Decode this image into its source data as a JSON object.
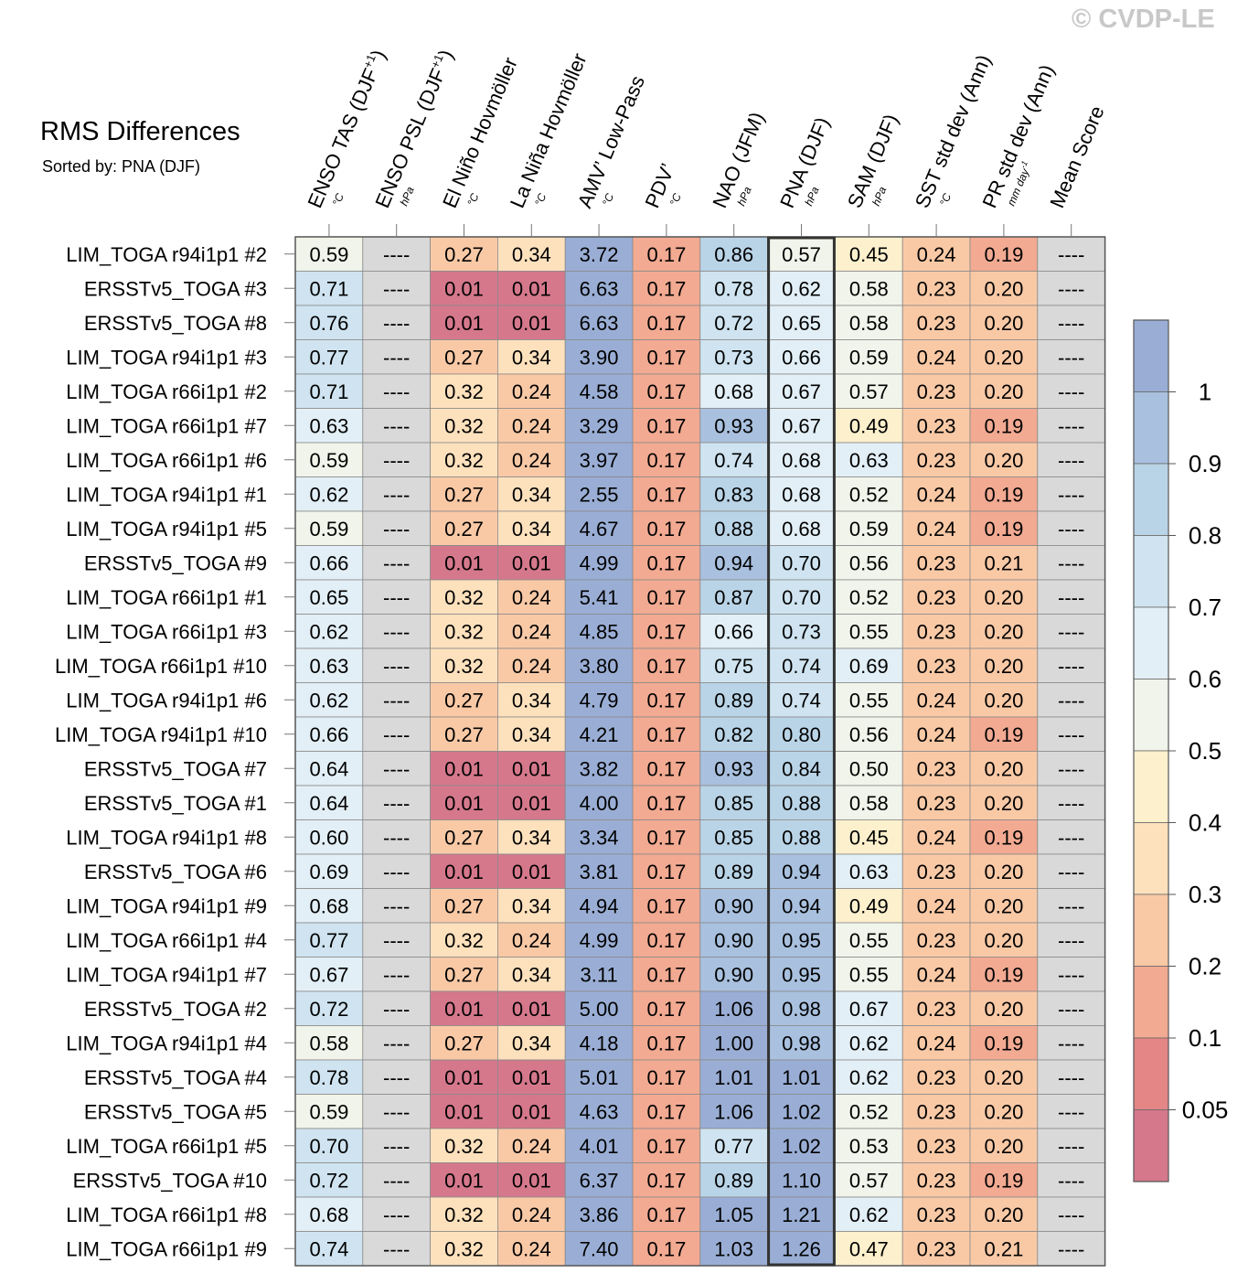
{
  "watermark": "© CVDP-LE",
  "header": {
    "title": "RMS Differences",
    "sorted_by": "Sorted by: PNA (DJF)"
  },
  "chart_data": {
    "type": "heatmap",
    "title": "RMS Differences",
    "subtitle": "Sorted by: PNA (DJF)",
    "sorted_column": "PNA (DJF)",
    "missing_label": "----",
    "columns": [
      {
        "label": "ENSO TAS (DJF",
        "sup": "+1",
        "label_end": ")",
        "unit": "°C"
      },
      {
        "label": "ENSO PSL (DJF",
        "sup": "+1",
        "label_end": ")",
        "unit": "hPa"
      },
      {
        "label": "El Niño Hovmöller",
        "sup": "",
        "label_end": "",
        "unit": "°C"
      },
      {
        "label": "La Niña Hovmöller",
        "sup": "",
        "label_end": "",
        "unit": "°C"
      },
      {
        "label": "AMV’ Low-Pass",
        "sup": "",
        "label_end": "",
        "unit": "°C"
      },
      {
        "label": "PDV’",
        "sup": "",
        "label_end": "",
        "unit": "°C"
      },
      {
        "label": "NAO (JFM)",
        "sup": "",
        "label_end": "",
        "unit": "hPa"
      },
      {
        "label": "PNA (DJF)",
        "sup": "",
        "label_end": "",
        "unit": "hPa"
      },
      {
        "label": "SAM (DJF)",
        "sup": "",
        "label_end": "",
        "unit": "hPa"
      },
      {
        "label": "SST std dev (Ann)",
        "sup": "",
        "label_end": "",
        "unit": "°C"
      },
      {
        "label": "PR std dev (Ann)",
        "sup": "",
        "label_end": "",
        "unit": "mm day",
        "unit_sup": "-1"
      },
      {
        "label": "Mean Score",
        "sup": "",
        "label_end": "",
        "unit": ""
      }
    ],
    "rows": [
      {
        "name": "LIM_TOGA r94i1p1 #2",
        "values": [
          "0.59",
          "----",
          "0.27",
          "0.34",
          "3.72",
          "0.17",
          "0.86",
          "0.57",
          "0.45",
          "0.24",
          "0.19",
          "----"
        ]
      },
      {
        "name": "ERSSTv5_TOGA #3",
        "values": [
          "0.71",
          "----",
          "0.01",
          "0.01",
          "6.63",
          "0.17",
          "0.78",
          "0.62",
          "0.58",
          "0.23",
          "0.20",
          "----"
        ]
      },
      {
        "name": "ERSSTv5_TOGA #8",
        "values": [
          "0.76",
          "----",
          "0.01",
          "0.01",
          "6.63",
          "0.17",
          "0.72",
          "0.65",
          "0.58",
          "0.23",
          "0.20",
          "----"
        ]
      },
      {
        "name": "LIM_TOGA r94i1p1 #3",
        "values": [
          "0.77",
          "----",
          "0.27",
          "0.34",
          "3.90",
          "0.17",
          "0.73",
          "0.66",
          "0.59",
          "0.24",
          "0.20",
          "----"
        ]
      },
      {
        "name": "LIM_TOGA r66i1p1 #2",
        "values": [
          "0.71",
          "----",
          "0.32",
          "0.24",
          "4.58",
          "0.17",
          "0.68",
          "0.67",
          "0.57",
          "0.23",
          "0.20",
          "----"
        ]
      },
      {
        "name": "LIM_TOGA r66i1p1 #7",
        "values": [
          "0.63",
          "----",
          "0.32",
          "0.24",
          "3.29",
          "0.17",
          "0.93",
          "0.67",
          "0.49",
          "0.23",
          "0.19",
          "----"
        ]
      },
      {
        "name": "LIM_TOGA r66i1p1 #6",
        "values": [
          "0.59",
          "----",
          "0.32",
          "0.24",
          "3.97",
          "0.17",
          "0.74",
          "0.68",
          "0.63",
          "0.23",
          "0.20",
          "----"
        ]
      },
      {
        "name": "LIM_TOGA r94i1p1 #1",
        "values": [
          "0.62",
          "----",
          "0.27",
          "0.34",
          "2.55",
          "0.17",
          "0.83",
          "0.68",
          "0.52",
          "0.24",
          "0.19",
          "----"
        ]
      },
      {
        "name": "LIM_TOGA r94i1p1 #5",
        "values": [
          "0.59",
          "----",
          "0.27",
          "0.34",
          "4.67",
          "0.17",
          "0.88",
          "0.68",
          "0.59",
          "0.24",
          "0.19",
          "----"
        ]
      },
      {
        "name": "ERSSTv5_TOGA #9",
        "values": [
          "0.66",
          "----",
          "0.01",
          "0.01",
          "4.99",
          "0.17",
          "0.94",
          "0.70",
          "0.56",
          "0.23",
          "0.21",
          "----"
        ]
      },
      {
        "name": "LIM_TOGA r66i1p1 #1",
        "values": [
          "0.65",
          "----",
          "0.32",
          "0.24",
          "5.41",
          "0.17",
          "0.87",
          "0.70",
          "0.52",
          "0.23",
          "0.20",
          "----"
        ]
      },
      {
        "name": "LIM_TOGA r66i1p1 #3",
        "values": [
          "0.62",
          "----",
          "0.32",
          "0.24",
          "4.85",
          "0.17",
          "0.66",
          "0.73",
          "0.55",
          "0.23",
          "0.20",
          "----"
        ]
      },
      {
        "name": "LIM_TOGA r66i1p1 #10",
        "values": [
          "0.63",
          "----",
          "0.32",
          "0.24",
          "3.80",
          "0.17",
          "0.75",
          "0.74",
          "0.69",
          "0.23",
          "0.20",
          "----"
        ]
      },
      {
        "name": "LIM_TOGA r94i1p1 #6",
        "values": [
          "0.62",
          "----",
          "0.27",
          "0.34",
          "4.79",
          "0.17",
          "0.89",
          "0.74",
          "0.55",
          "0.24",
          "0.20",
          "----"
        ]
      },
      {
        "name": "LIM_TOGA r94i1p1 #10",
        "values": [
          "0.66",
          "----",
          "0.27",
          "0.34",
          "4.21",
          "0.17",
          "0.82",
          "0.80",
          "0.56",
          "0.24",
          "0.19",
          "----"
        ]
      },
      {
        "name": "ERSSTv5_TOGA #7",
        "values": [
          "0.64",
          "----",
          "0.01",
          "0.01",
          "3.82",
          "0.17",
          "0.93",
          "0.84",
          "0.50",
          "0.23",
          "0.20",
          "----"
        ]
      },
      {
        "name": "ERSSTv5_TOGA #1",
        "values": [
          "0.64",
          "----",
          "0.01",
          "0.01",
          "4.00",
          "0.17",
          "0.85",
          "0.88",
          "0.58",
          "0.23",
          "0.20",
          "----"
        ]
      },
      {
        "name": "LIM_TOGA r94i1p1 #8",
        "values": [
          "0.60",
          "----",
          "0.27",
          "0.34",
          "3.34",
          "0.17",
          "0.85",
          "0.88",
          "0.45",
          "0.24",
          "0.19",
          "----"
        ]
      },
      {
        "name": "ERSSTv5_TOGA #6",
        "values": [
          "0.69",
          "----",
          "0.01",
          "0.01",
          "3.81",
          "0.17",
          "0.89",
          "0.94",
          "0.63",
          "0.23",
          "0.20",
          "----"
        ]
      },
      {
        "name": "LIM_TOGA r94i1p1 #9",
        "values": [
          "0.68",
          "----",
          "0.27",
          "0.34",
          "4.94",
          "0.17",
          "0.90",
          "0.94",
          "0.49",
          "0.24",
          "0.20",
          "----"
        ]
      },
      {
        "name": "LIM_TOGA r66i1p1 #4",
        "values": [
          "0.77",
          "----",
          "0.32",
          "0.24",
          "4.99",
          "0.17",
          "0.90",
          "0.95",
          "0.55",
          "0.23",
          "0.20",
          "----"
        ]
      },
      {
        "name": "LIM_TOGA r94i1p1 #7",
        "values": [
          "0.67",
          "----",
          "0.27",
          "0.34",
          "3.11",
          "0.17",
          "0.90",
          "0.95",
          "0.55",
          "0.24",
          "0.19",
          "----"
        ]
      },
      {
        "name": "ERSSTv5_TOGA #2",
        "values": [
          "0.72",
          "----",
          "0.01",
          "0.01",
          "5.00",
          "0.17",
          "1.06",
          "0.98",
          "0.67",
          "0.23",
          "0.20",
          "----"
        ]
      },
      {
        "name": "LIM_TOGA r94i1p1 #4",
        "values": [
          "0.58",
          "----",
          "0.27",
          "0.34",
          "4.18",
          "0.17",
          "1.00",
          "0.98",
          "0.62",
          "0.24",
          "0.19",
          "----"
        ]
      },
      {
        "name": "ERSSTv5_TOGA #4",
        "values": [
          "0.78",
          "----",
          "0.01",
          "0.01",
          "5.01",
          "0.17",
          "1.01",
          "1.01",
          "0.62",
          "0.23",
          "0.20",
          "----"
        ]
      },
      {
        "name": "ERSSTv5_TOGA #5",
        "values": [
          "0.59",
          "----",
          "0.01",
          "0.01",
          "4.63",
          "0.17",
          "1.06",
          "1.02",
          "0.52",
          "0.23",
          "0.20",
          "----"
        ]
      },
      {
        "name": "LIM_TOGA r66i1p1 #5",
        "values": [
          "0.70",
          "----",
          "0.32",
          "0.24",
          "4.01",
          "0.17",
          "0.77",
          "1.02",
          "0.53",
          "0.23",
          "0.20",
          "----"
        ]
      },
      {
        "name": "ERSSTv5_TOGA #10",
        "values": [
          "0.72",
          "----",
          "0.01",
          "0.01",
          "6.37",
          "0.17",
          "0.89",
          "1.10",
          "0.57",
          "0.23",
          "0.19",
          "----"
        ]
      },
      {
        "name": "LIM_TOGA r66i1p1 #8",
        "values": [
          "0.68",
          "----",
          "0.32",
          "0.24",
          "3.86",
          "0.17",
          "1.05",
          "1.21",
          "0.62",
          "0.23",
          "0.20",
          "----"
        ]
      },
      {
        "name": "LIM_TOGA r66i1p1 #9",
        "values": [
          "0.74",
          "----",
          "0.32",
          "0.24",
          "7.40",
          "0.17",
          "1.03",
          "1.26",
          "0.47",
          "0.23",
          "0.21",
          "----"
        ]
      }
    ],
    "colorbar": {
      "tick_labels": [
        "1",
        "0.9",
        "0.8",
        "0.7",
        "0.6",
        "0.5",
        "0.4",
        "0.3",
        "0.2",
        "0.1",
        "0.05"
      ],
      "levels_desc": [
        1,
        0.9,
        0.8,
        0.7,
        0.6,
        0.5,
        0.4,
        0.3,
        0.2,
        0.1,
        0.05
      ],
      "colors_top_to_bottom": [
        "#9aaed5",
        "#a9c1df",
        "#bad4e7",
        "#cfe4f0",
        "#e2eff6",
        "#f1f4ea",
        "#fcf0cd",
        "#fde1bd",
        "#f9c9a6",
        "#f2aa92",
        "#e48686",
        "#d5788c"
      ],
      "missing_color": "#d9d9d9"
    }
  }
}
